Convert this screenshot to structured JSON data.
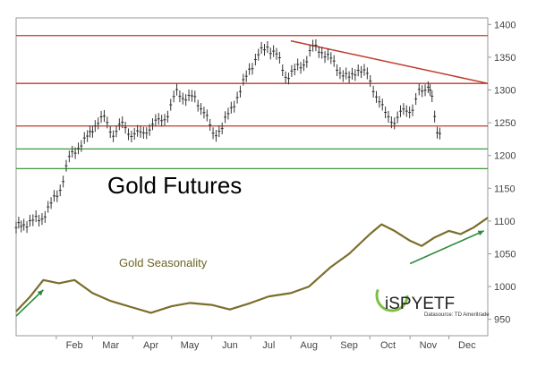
{
  "chart_data": {
    "type": "line",
    "title": "Gold Futures",
    "y_axis": {
      "ticks": [
        950,
        1000,
        1050,
        1100,
        1150,
        1200,
        1250,
        1300,
        1350,
        1400
      ],
      "range": [
        925,
        1410
      ],
      "position": "right"
    },
    "x_axis": {
      "ticks": [
        "Feb",
        "Mar",
        "Apr",
        "May",
        "Jun",
        "Jul",
        "Aug",
        "Sep",
        "Oct",
        "Nov",
        "Dec"
      ],
      "range": [
        "Jan 1",
        "Dec 31"
      ]
    },
    "grid": false,
    "series": [
      {
        "name": "Gold Futures",
        "style": "ohlc-bars",
        "color": "#333333",
        "points": [
          [
            "Jan 1",
            1090
          ],
          [
            "Jan 7",
            1095
          ],
          [
            "Jan 14",
            1100
          ],
          [
            "Jan 21",
            1105
          ],
          [
            "Jan 28",
            1125
          ],
          [
            "Feb 4",
            1150
          ],
          [
            "Feb 11",
            1195
          ],
          [
            "Feb 18",
            1215
          ],
          [
            "Feb 25",
            1225
          ],
          [
            "Mar 3",
            1250
          ],
          [
            "Mar 10",
            1255
          ],
          [
            "Mar 17",
            1235
          ],
          [
            "Mar 24",
            1245
          ],
          [
            "Mar 31",
            1235
          ],
          [
            "Apr 7",
            1230
          ],
          [
            "Apr 14",
            1245
          ],
          [
            "Apr 21",
            1250
          ],
          [
            "Apr 28",
            1265
          ],
          [
            "May 5",
            1295
          ],
          [
            "May 12",
            1290
          ],
          [
            "May 19",
            1285
          ],
          [
            "May 26",
            1270
          ],
          [
            "Jun 2",
            1230
          ],
          [
            "Jun 9",
            1245
          ],
          [
            "Jun 16",
            1270
          ],
          [
            "Jun 23",
            1300
          ],
          [
            "Jun 30",
            1330
          ],
          [
            "Jul 7",
            1355
          ],
          [
            "Jul 14",
            1365
          ],
          [
            "Jul 21",
            1355
          ],
          [
            "Jul 28",
            1320
          ],
          [
            "Aug 4",
            1330
          ],
          [
            "Aug 11",
            1340
          ],
          [
            "Aug 18",
            1365
          ],
          [
            "Aug 25",
            1360
          ],
          [
            "Sep 1",
            1345
          ],
          [
            "Sep 8",
            1330
          ],
          [
            "Sep 15",
            1315
          ],
          [
            "Sep 22",
            1335
          ],
          [
            "Sep 29",
            1320
          ],
          [
            "Oct 6",
            1295
          ],
          [
            "Oct 13",
            1260
          ],
          [
            "Oct 20",
            1255
          ],
          [
            "Oct 27",
            1265
          ],
          [
            "Nov 3",
            1275
          ],
          [
            "Nov 8",
            1295
          ],
          [
            "Nov 15",
            1310
          ],
          [
            "Nov 18",
            1285
          ],
          [
            "Nov 22",
            1240
          ],
          [
            "Nov 26",
            1220
          ]
        ]
      },
      {
        "name": "Gold Seasonality",
        "style": "line",
        "color": "#7a6e2a",
        "points": [
          [
            "Jan 1",
            962
          ],
          [
            "Jan 12",
            985
          ],
          [
            "Jan 22",
            1010
          ],
          [
            "Feb 3",
            1005
          ],
          [
            "Feb 15",
            1010
          ],
          [
            "Mar 1",
            990
          ],
          [
            "Mar 15",
            978
          ],
          [
            "Apr 1",
            968
          ],
          [
            "Apr 15",
            960
          ],
          [
            "May 1",
            970
          ],
          [
            "May 15",
            975
          ],
          [
            "Jun 1",
            972
          ],
          [
            "Jun 15",
            965
          ],
          [
            "Jul 1",
            975
          ],
          [
            "Jul 15",
            985
          ],
          [
            "Aug 1",
            990
          ],
          [
            "Aug 15",
            1000
          ],
          [
            "Sep 1",
            1030
          ],
          [
            "Sep 15",
            1050
          ],
          [
            "Oct 1",
            1080
          ],
          [
            "Oct 10",
            1095
          ],
          [
            "Oct 20",
            1085
          ],
          [
            "Nov 1",
            1070
          ],
          [
            "Nov 10",
            1062
          ],
          [
            "Nov 20",
            1075
          ],
          [
            "Dec 1",
            1085
          ],
          [
            "Dec 10",
            1080
          ],
          [
            "Dec 20",
            1090
          ],
          [
            "Dec 31",
            1105
          ]
        ]
      }
    ],
    "reference_lines": [
      {
        "level": 1383,
        "color": "#c0392b"
      },
      {
        "level": 1310,
        "color": "#c0392b"
      },
      {
        "level": 1245,
        "color": "#c0392b"
      },
      {
        "level": 1210,
        "color": "#3a9a3a"
      },
      {
        "level": 1180,
        "color": "#3a9a3a"
      }
    ],
    "trendline": {
      "from": [
        "Aug 1",
        1375
      ],
      "to": [
        "Dec 31",
        1310
      ],
      "color": "#c0392b"
    },
    "arrows": [
      {
        "from": [
          "Jan 1",
          955
        ],
        "to": [
          "Jan 22",
          995
        ],
        "color": "#2e8b3e"
      },
      {
        "from": [
          "Nov 1",
          1035
        ],
        "to": [
          "Dec 28",
          1085
        ],
        "color": "#2e8b3e"
      }
    ],
    "annotations": [
      "Gold Seasonality"
    ]
  },
  "logo": {
    "brand": "iSPYETF",
    "source": "Datasource: TD Ameritrade"
  }
}
